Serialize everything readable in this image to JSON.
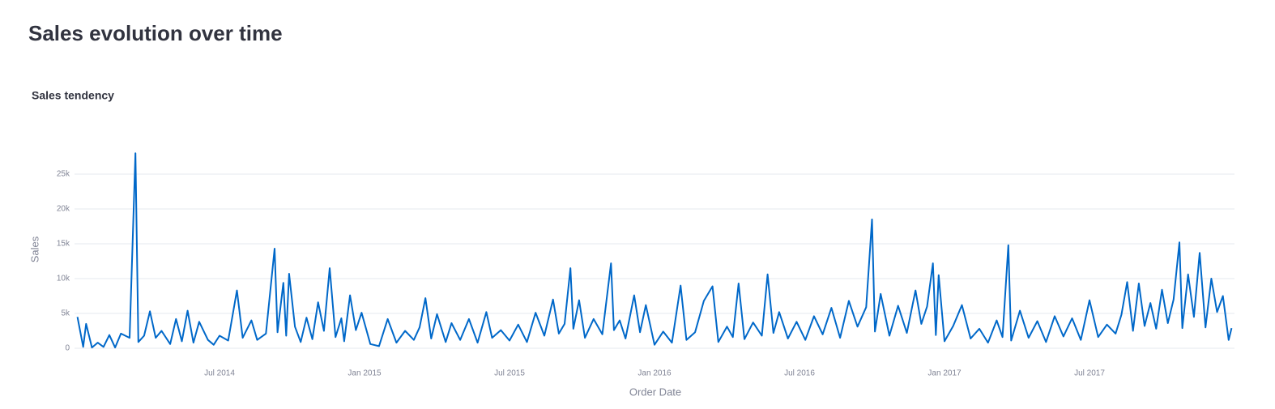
{
  "header": {
    "title": "Sales evolution over time"
  },
  "chart_data": {
    "type": "line",
    "title": "Sales tendency",
    "x_label": "Order Date",
    "y_label": "Sales",
    "x": [
      2014.01,
      2014.03,
      2014.04,
      2014.06,
      2014.08,
      2014.1,
      2014.12,
      2014.14,
      2014.16,
      2014.19,
      2014.21,
      2014.22,
      2014.24,
      2014.26,
      2014.28,
      2014.3,
      2014.33,
      2014.35,
      2014.37,
      2014.39,
      2014.41,
      2014.43,
      2014.46,
      2014.48,
      2014.5,
      2014.53,
      2014.56,
      2014.58,
      2014.61,
      2014.63,
      2014.66,
      2014.69,
      2014.7,
      2014.72,
      2014.73,
      2014.74,
      2014.76,
      2014.78,
      2014.8,
      2014.82,
      2014.84,
      2014.86,
      2014.88,
      2014.9,
      2014.92,
      2014.93,
      2014.95,
      2014.97,
      2014.99,
      2015.02,
      2015.05,
      2015.08,
      2015.11,
      2015.14,
      2015.17,
      2015.19,
      2015.21,
      2015.23,
      2015.25,
      2015.28,
      2015.3,
      2015.33,
      2015.36,
      2015.39,
      2015.42,
      2015.44,
      2015.47,
      2015.5,
      2015.53,
      2015.56,
      2015.59,
      2015.62,
      2015.65,
      2015.67,
      2015.69,
      2015.71,
      2015.72,
      2015.74,
      2015.76,
      2015.79,
      2015.82,
      2015.85,
      2015.86,
      2015.88,
      2015.9,
      2015.93,
      2015.95,
      2015.97,
      2016.0,
      2016.03,
      2016.06,
      2016.09,
      2016.11,
      2016.14,
      2016.17,
      2016.2,
      2016.22,
      2016.25,
      2016.27,
      2016.29,
      2016.31,
      2016.34,
      2016.37,
      2016.39,
      2016.41,
      2016.43,
      2016.46,
      2016.49,
      2016.52,
      2016.55,
      2016.58,
      2016.61,
      2016.64,
      2016.67,
      2016.7,
      2016.73,
      2016.75,
      2016.76,
      2016.78,
      2016.81,
      2016.84,
      2016.87,
      2016.9,
      2016.92,
      2016.94,
      2016.96,
      2016.97,
      2016.98,
      2017.0,
      2017.03,
      2017.06,
      2017.09,
      2017.12,
      2017.15,
      2017.18,
      2017.2,
      2017.22,
      2017.23,
      2017.26,
      2017.29,
      2017.32,
      2017.35,
      2017.38,
      2017.41,
      2017.44,
      2017.47,
      2017.5,
      2017.53,
      2017.56,
      2017.59,
      2017.61,
      2017.63,
      2017.65,
      2017.67,
      2017.69,
      2017.71,
      2017.73,
      2017.75,
      2017.77,
      2017.79,
      2017.81,
      2017.82,
      2017.84,
      2017.86,
      2017.88,
      2017.9,
      2017.92,
      2017.94,
      2017.96,
      2017.98,
      2017.99
    ],
    "series": [
      {
        "name": "Sales",
        "color": "#0068c9",
        "values": [
          4500,
          200,
          3500,
          100,
          800,
          200,
          1900,
          100,
          2100,
          1500,
          28000,
          900,
          1800,
          5300,
          1500,
          2500,
          600,
          4200,
          1000,
          5400,
          800,
          3800,
          1200,
          500,
          1800,
          1100,
          8300,
          1500,
          4000,
          1200,
          2100,
          14300,
          2300,
          9400,
          1800,
          10700,
          3100,
          900,
          4400,
          1300,
          6600,
          2500,
          11500,
          1600,
          4300,
          1000,
          7600,
          2600,
          5100,
          600,
          300,
          4200,
          800,
          2500,
          1200,
          3000,
          7200,
          1400,
          4900,
          900,
          3600,
          1200,
          4200,
          800,
          5200,
          1500,
          2600,
          1100,
          3400,
          900,
          5100,
          1800,
          7000,
          2100,
          3500,
          11500,
          2800,
          6900,
          1500,
          4200,
          2000,
          12200,
          2600,
          4000,
          1400,
          7600,
          2300,
          6200,
          500,
          2400,
          800,
          9000,
          1200,
          2300,
          6800,
          8900,
          900,
          3100,
          1600,
          9300,
          1300,
          3700,
          1800,
          10600,
          2200,
          5200,
          1400,
          3800,
          1200,
          4600,
          2000,
          5800,
          1500,
          6800,
          3100,
          5900,
          18500,
          2400,
          7800,
          1800,
          6100,
          2200,
          8300,
          3500,
          6000,
          12200,
          1900,
          10500,
          1000,
          3200,
          6200,
          1400,
          2800,
          800,
          4000,
          1600,
          14800,
          1100,
          5400,
          1500,
          3900,
          900,
          4600,
          1700,
          4300,
          1200,
          6900,
          1600,
          3400,
          2100,
          4800,
          9500,
          2500,
          9300,
          3200,
          6500,
          2800,
          8400,
          3600,
          7000,
          15200,
          2900,
          10600,
          4500,
          13700,
          3000,
          10000,
          5200,
          7500,
          1200,
          2900
        ]
      }
    ],
    "xlim": [
      2014.0,
      2018.0
    ],
    "xticks": [
      {
        "value": 2014.5,
        "label": "Jul 2014"
      },
      {
        "value": 2015.0,
        "label": "Jan 2015"
      },
      {
        "value": 2015.5,
        "label": "Jul 2015"
      },
      {
        "value": 2016.0,
        "label": "Jan 2016"
      },
      {
        "value": 2016.5,
        "label": "Jul 2016"
      },
      {
        "value": 2017.0,
        "label": "Jan 2017"
      },
      {
        "value": 2017.5,
        "label": "Jul 2017"
      }
    ],
    "ylim": [
      0,
      30000
    ],
    "yticks": [
      0,
      {
        "value": 5000,
        "label": "5k"
      },
      {
        "value": 10000,
        "label": "10k"
      },
      {
        "value": 15000,
        "label": "15k"
      },
      {
        "value": 20000,
        "label": "20k"
      },
      {
        "value": 25000,
        "label": "25k"
      }
    ],
    "grid": true
  }
}
